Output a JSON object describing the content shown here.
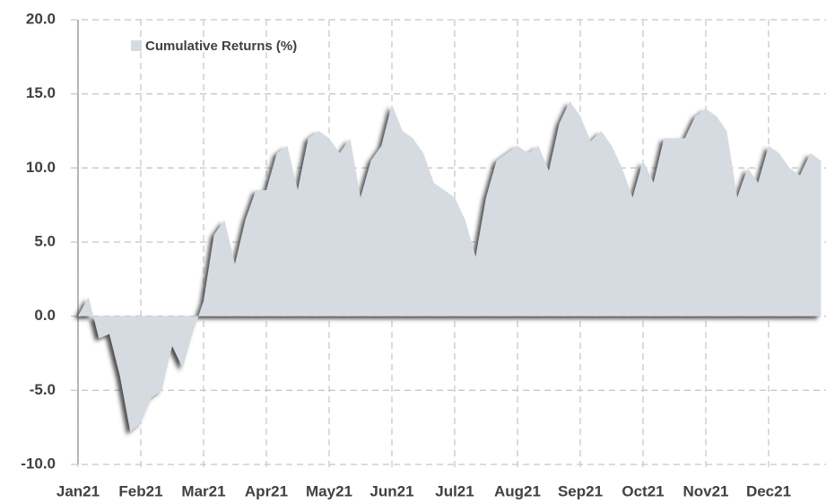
{
  "chart_data": {
    "type": "area",
    "legend": "upper left",
    "grid": true,
    "series": [
      {
        "name": "Cumulative Returns (%)",
        "color": "#d6dae1",
        "values": [
          0,
          1.3,
          -1.5,
          -1.2,
          -4,
          -7.8,
          -7.2,
          -5.5,
          -5,
          -2,
          -3.5,
          -1,
          1,
          5.5,
          6.5,
          3.5,
          6.5,
          8.5,
          8.5,
          11,
          11.5,
          8.5,
          12,
          12.5,
          12,
          11,
          12,
          8,
          10.5,
          11.5,
          14.3,
          12.5,
          12,
          11,
          9,
          8.5,
          8,
          6.5,
          4,
          8,
          10.5,
          11,
          11.5,
          11,
          11.5,
          9.8,
          13,
          14.5,
          13.5,
          11.8,
          12.5,
          11.5,
          10,
          8,
          10.5,
          9,
          12,
          12,
          12,
          13.5,
          14,
          13.5,
          12.5,
          8,
          10,
          9,
          11.5,
          11,
          10,
          9.5,
          11,
          10.5
        ]
      }
    ],
    "categories": [
      "Jan21",
      null,
      null,
      null,
      null,
      null,
      "Feb21",
      null,
      null,
      null,
      null,
      null,
      "Mar21",
      null,
      null,
      null,
      null,
      null,
      "Apr21",
      null,
      null,
      null,
      null,
      null,
      "May21",
      null,
      null,
      null,
      null,
      null,
      "Jun21",
      null,
      null,
      null,
      null,
      null,
      "Jul21",
      null,
      null,
      null,
      null,
      null,
      "Aug21",
      null,
      null,
      null,
      null,
      null,
      "Sep21",
      null,
      null,
      null,
      null,
      null,
      "Oct21",
      null,
      null,
      null,
      null,
      null,
      "Nov21",
      null,
      null,
      null,
      null,
      null,
      "Dec21",
      null,
      null,
      null,
      null,
      null
    ],
    "ylim": [
      -10,
      20
    ],
    "yticks": [
      {
        "value": -10,
        "label": "-10.0"
      },
      {
        "value": -5,
        "label": "-5.0"
      },
      {
        "value": 0,
        "label": "0.0"
      },
      {
        "value": 5,
        "label": "5.0"
      },
      {
        "value": 10,
        "label": "10.0"
      },
      {
        "value": 15,
        "label": "15.0"
      },
      {
        "value": 20,
        "label": "20.0"
      }
    ]
  }
}
